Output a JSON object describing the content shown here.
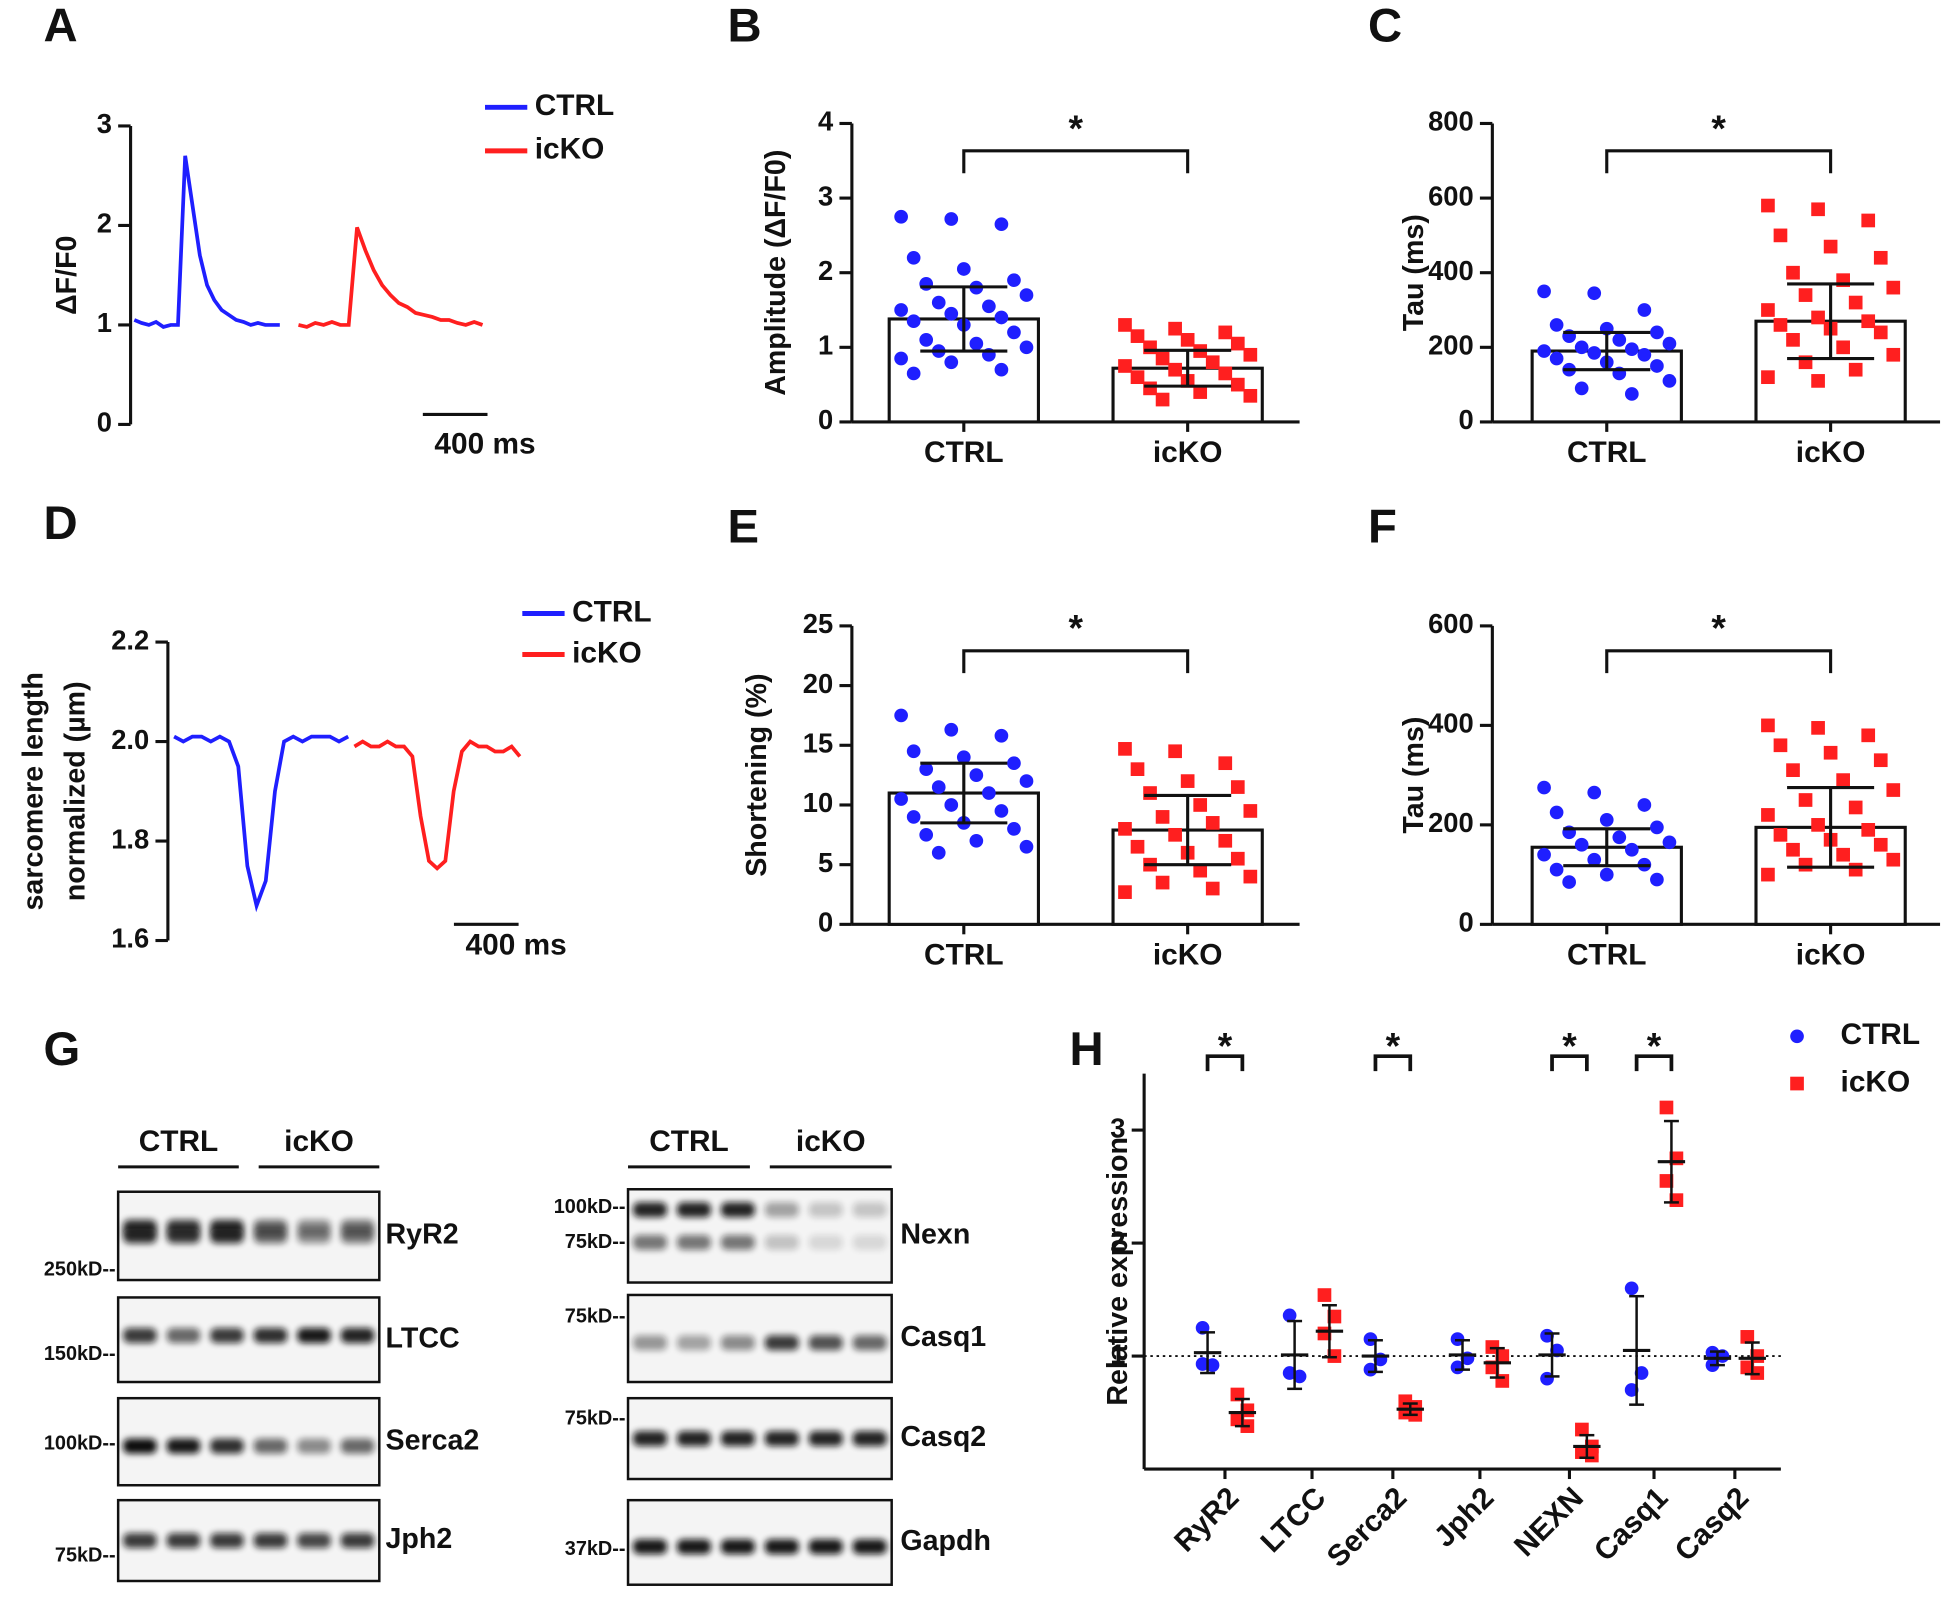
{
  "chart_data": [
    {
      "type": "line",
      "panel": "A",
      "ylabel": "ΔF/F0",
      "ylim": [
        0,
        3
      ],
      "yticks": [
        0,
        1,
        2,
        3
      ],
      "scale_bar_label": "400 ms",
      "series": [
        {
          "name": "CTRL",
          "color": "#1f1fff",
          "values": [
            1.05,
            1.02,
            1.0,
            1.03,
            0.98,
            1.0,
            1.0,
            2.7,
            2.2,
            1.7,
            1.4,
            1.25,
            1.15,
            1.1,
            1.05,
            1.03,
            1.0,
            1.02,
            1.0,
            1.0,
            1.0
          ]
        },
        {
          "name": "icKO",
          "color": "#ff1f1f",
          "values": [
            1.0,
            0.98,
            1.02,
            1.0,
            1.03,
            1.0,
            1.0,
            1.98,
            1.75,
            1.55,
            1.4,
            1.3,
            1.22,
            1.18,
            1.12,
            1.1,
            1.08,
            1.05,
            1.05,
            1.02,
            1.0,
            1.03,
            1.0
          ]
        }
      ]
    },
    {
      "type": "bar",
      "panel": "B",
      "ylabel": "Amplitude (ΔF/F0)",
      "ylim": [
        0,
        4
      ],
      "yticks": [
        0,
        1,
        2,
        3,
        4
      ],
      "significance_label": "*",
      "categories": [
        "CTRL",
        "icKO"
      ],
      "colors": [
        "#1f1fff",
        "#ff1f1f"
      ],
      "markers": [
        "circle",
        "square"
      ],
      "values": [
        1.38,
        0.72
      ],
      "errors": [
        0.43,
        0.24
      ],
      "points": [
        [
          2.75,
          2.72,
          2.65,
          2.2,
          2.05,
          1.9,
          1.85,
          1.8,
          1.7,
          1.6,
          1.55,
          1.5,
          1.45,
          1.4,
          1.35,
          1.3,
          1.2,
          1.1,
          1.05,
          1.0,
          0.95,
          0.9,
          0.85,
          0.8,
          0.7,
          0.65
        ],
        [
          1.3,
          1.25,
          1.2,
          1.15,
          1.1,
          1.05,
          1.0,
          0.95,
          0.9,
          0.85,
          0.8,
          0.75,
          0.7,
          0.65,
          0.6,
          0.55,
          0.5,
          0.45,
          0.4,
          0.35,
          0.3
        ]
      ]
    },
    {
      "type": "bar",
      "panel": "C",
      "ylabel": "Tau (ms)",
      "ylim": [
        0,
        800
      ],
      "yticks": [
        0,
        200,
        400,
        600,
        800
      ],
      "significance_label": "*",
      "categories": [
        "CTRL",
        "icKO"
      ],
      "colors": [
        "#1f1fff",
        "#ff1f1f"
      ],
      "markers": [
        "circle",
        "square"
      ],
      "values": [
        190,
        270
      ],
      "errors": [
        50,
        100
      ],
      "points": [
        [
          350,
          345,
          300,
          260,
          250,
          240,
          230,
          220,
          210,
          200,
          195,
          190,
          185,
          180,
          170,
          160,
          150,
          140,
          130,
          110,
          90,
          75
        ],
        [
          580,
          570,
          540,
          500,
          470,
          440,
          400,
          380,
          360,
          340,
          320,
          300,
          280,
          270,
          260,
          250,
          240,
          220,
          200,
          180,
          160,
          140,
          120,
          110
        ]
      ]
    },
    {
      "type": "line",
      "panel": "D",
      "ylabel": [
        "sarcomere length",
        "normalized (µm)"
      ],
      "ylim": [
        1.6,
        2.2
      ],
      "yticks": [
        1.6,
        1.8,
        {
          "value": 2,
          "label": "2.0"
        },
        2.2
      ],
      "scale_bar_label": "400 ms",
      "series": [
        {
          "name": "CTRL",
          "color": "#1f1fff",
          "values": [
            2.01,
            2.0,
            2.01,
            2.01,
            2.0,
            2.01,
            2.0,
            1.95,
            1.75,
            1.67,
            1.72,
            1.9,
            2.0,
            2.01,
            2.0,
            2.01,
            2.01,
            2.01,
            2.0,
            2.01
          ]
        },
        {
          "name": "icKO",
          "color": "#ff1f1f",
          "values": [
            1.99,
            2.0,
            1.99,
            1.99,
            2.0,
            1.99,
            1.99,
            1.97,
            1.85,
            1.76,
            1.745,
            1.76,
            1.9,
            1.98,
            2.0,
            1.99,
            1.99,
            1.98,
            1.98,
            1.99,
            1.97
          ]
        }
      ]
    },
    {
      "type": "bar",
      "panel": "E",
      "ylabel": "Shortening (%)",
      "ylim": [
        0,
        25
      ],
      "yticks": [
        0,
        5,
        10,
        15,
        20,
        25
      ],
      "significance_label": "*",
      "categories": [
        "CTRL",
        "icKO"
      ],
      "colors": [
        "#1f1fff",
        "#ff1f1f"
      ],
      "markers": [
        "circle",
        "square"
      ],
      "values": [
        11.0,
        7.9
      ],
      "errors": [
        2.5,
        2.9
      ],
      "points": [
        [
          17.5,
          16.3,
          15.8,
          14.5,
          14,
          13.5,
          13,
          12.5,
          12,
          11.5,
          11,
          10.5,
          10,
          9.5,
          9,
          8.5,
          8,
          7.5,
          7,
          6.5,
          6
        ],
        [
          14.7,
          14.5,
          13.5,
          13,
          12,
          11.5,
          11,
          10,
          9.5,
          9,
          8.5,
          8,
          7.5,
          7,
          6.5,
          6,
          5.5,
          5,
          4.5,
          4,
          3.5,
          3,
          2.7
        ]
      ]
    },
    {
      "type": "bar",
      "panel": "F",
      "ylabel": "Tau (ms)",
      "ylim": [
        0,
        600
      ],
      "yticks": [
        0,
        200,
        400,
        600
      ],
      "significance_label": "*",
      "categories": [
        "CTRL",
        "icKO"
      ],
      "colors": [
        "#1f1fff",
        "#ff1f1f"
      ],
      "markers": [
        "circle",
        "square"
      ],
      "values": [
        155,
        195
      ],
      "errors": [
        37,
        80
      ],
      "points": [
        [
          275,
          265,
          240,
          225,
          210,
          195,
          185,
          175,
          165,
          160,
          150,
          140,
          130,
          120,
          110,
          100,
          90,
          85
        ],
        [
          400,
          395,
          380,
          360,
          345,
          330,
          310,
          290,
          270,
          250,
          235,
          220,
          200,
          190,
          180,
          170,
          160,
          150,
          140,
          130,
          120,
          110,
          100
        ]
      ]
    },
    {
      "type": "dot",
      "panel": "H",
      "ylabel": "Relative expression",
      "ylim": [
        0,
        3.5
      ],
      "yticks": [
        1,
        2,
        3
      ],
      "reference_line": 1,
      "categories": [
        "RyR2",
        "LTCC",
        "Serca2",
        "Jph2",
        "NEXN",
        "Casq1",
        "Casq2"
      ],
      "significance_labels": [
        "*",
        null,
        "*",
        null,
        "*",
        "*",
        null
      ],
      "series": [
        {
          "name": "CTRL",
          "color": "#1f1fff",
          "marker": "circle",
          "values": [
            [
              1.25,
              0.92,
              0.93
            ],
            [
              1.36,
              0.82,
              0.85
            ],
            [
              1.15,
              0.97,
              0.88
            ],
            [
              1.15,
              0.98,
              0.9
            ],
            [
              1.18,
              1.05,
              0.8
            ],
            [
              1.6,
              0.85,
              0.7
            ],
            [
              1.03,
              1.0,
              0.92
            ]
          ],
          "means": [
            1.03,
            1.01,
            1.0,
            1.01,
            1.01,
            1.05,
            0.98
          ],
          "errors": [
            0.18,
            0.3,
            0.14,
            0.13,
            0.19,
            0.48,
            0.06
          ]
        },
        {
          "name": "icKO",
          "color": "#ff1f1f",
          "marker": "square",
          "values": [
            [
              0.66,
              0.52,
              0.44,
              0.38
            ],
            [
              1.54,
              1.35,
              1.2,
              1.0
            ],
            [
              0.6,
              0.55,
              0.5,
              0.48
            ],
            [
              1.08,
              1.0,
              0.9,
              0.78
            ],
            [
              0.35,
              0.2,
              0.15,
              0.12
            ],
            [
              3.2,
              2.75,
              2.55,
              2.38
            ],
            [
              1.17,
              1.0,
              0.9,
              0.85
            ]
          ],
          "means": [
            0.5,
            1.22,
            0.53,
            0.94,
            0.2,
            2.72,
            0.98
          ],
          "errors": [
            0.12,
            0.23,
            0.05,
            0.13,
            0.1,
            0.36,
            0.14
          ]
        }
      ]
    }
  ],
  "blots": {
    "panel": "G",
    "left": {
      "groups": [
        "CTRL",
        "icKO"
      ],
      "rows": [
        {
          "protein": "RyR2",
          "markers": [
            "250kD--"
          ]
        },
        {
          "protein": "LTCC",
          "markers": [
            "150kD--"
          ]
        },
        {
          "protein": "Serca2",
          "markers": [
            "100kD--"
          ]
        },
        {
          "protein": "Jph2",
          "markers": [
            "75kD--"
          ]
        }
      ]
    },
    "right": {
      "groups": [
        "CTRL",
        "icKO"
      ],
      "rows": [
        {
          "protein": "Nexn",
          "markers": [
            "100kD--",
            "75kD--"
          ]
        },
        {
          "protein": "Casq1",
          "markers": [
            "75kD--"
          ]
        },
        {
          "protein": "Casq2",
          "markers": [
            "75kD--"
          ]
        },
        {
          "protein": "Gapdh",
          "markers": [
            "37kD--"
          ]
        }
      ]
    }
  }
}
